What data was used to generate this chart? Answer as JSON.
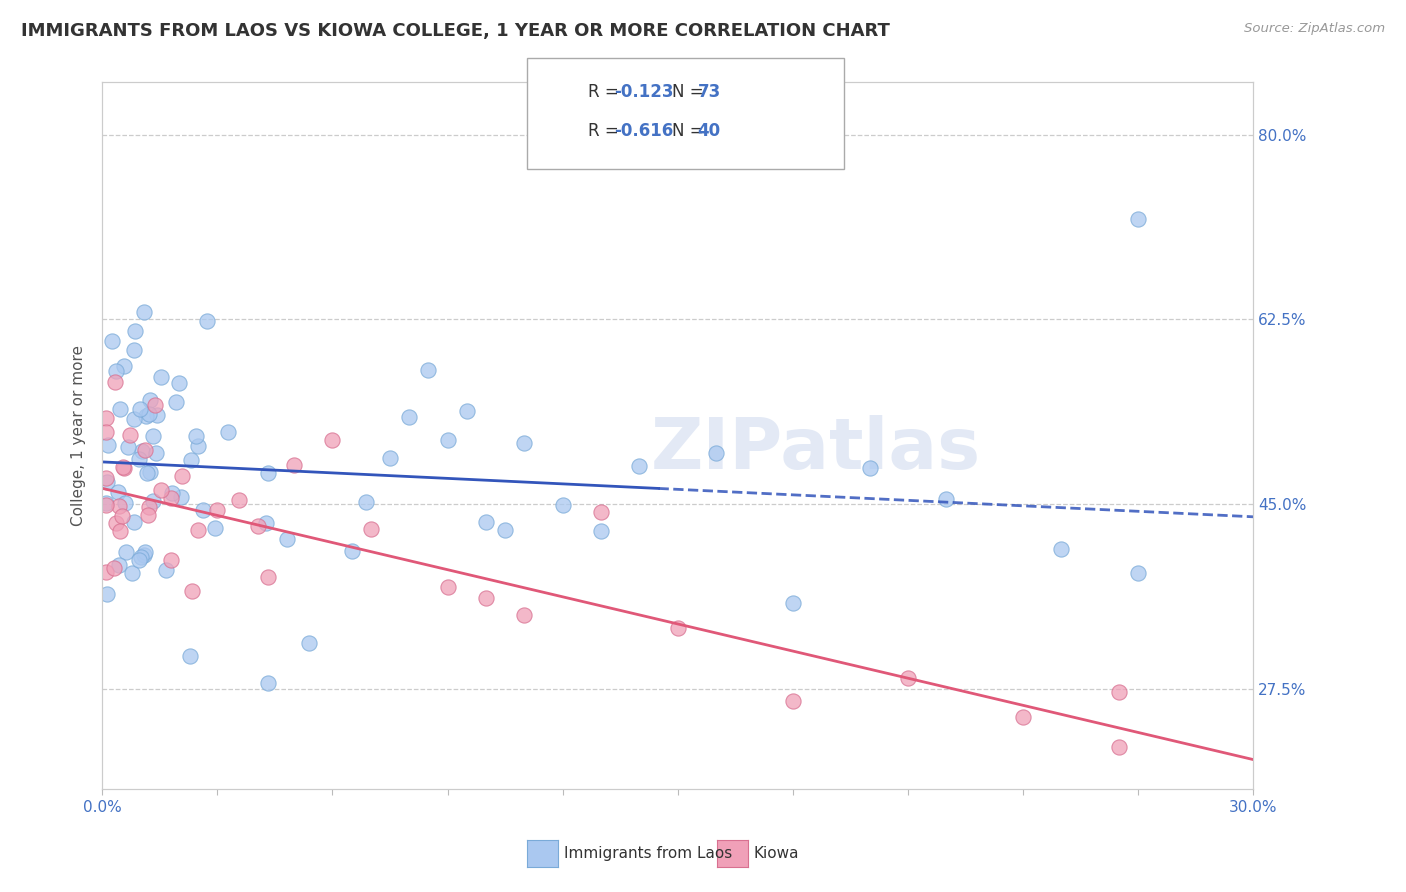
{
  "title": "IMMIGRANTS FROM LAOS VS KIOWA COLLEGE, 1 YEAR OR MORE CORRELATION CHART",
  "source_text": "Source: ZipAtlas.com",
  "ylabel": "College, 1 year or more",
  "xlim": [
    0.0,
    0.3
  ],
  "ylim": [
    0.18,
    0.85
  ],
  "yticks": [
    0.275,
    0.45,
    0.625,
    0.8
  ],
  "ytick_labels": [
    "27.5%",
    "45.0%",
    "62.5%",
    "80.0%"
  ],
  "xticks": [
    0.0,
    0.03,
    0.06,
    0.09,
    0.12,
    0.15,
    0.18,
    0.21,
    0.24,
    0.27,
    0.3
  ],
  "xtick_labels": [
    "0.0%",
    "",
    "",
    "",
    "",
    "",
    "",
    "",
    "",
    "",
    "30.0%"
  ],
  "series1_color": "#aac8f0",
  "series1_edge": "#7aaad8",
  "series2_color": "#f0a0b8",
  "series2_edge": "#d87090",
  "line1_color": "#3355bb",
  "line2_color": "#e05878",
  "legend_text1": "R = -0.123   N = 73",
  "legend_text2": "R = -0.616   N = 40",
  "watermark": "ZIPatlas",
  "series1_label": "Immigrants from Laos",
  "series2_label": "Kiowa",
  "trend1_x0": 0.0,
  "trend1_y0": 0.49,
  "trend1_x1": 0.3,
  "trend1_y1": 0.438,
  "trend1_solid_end": 0.145,
  "trend2_x0": 0.0,
  "trend2_y0": 0.465,
  "trend2_x1": 0.3,
  "trend2_y1": 0.208,
  "background_color": "#ffffff",
  "grid_color": "#cccccc",
  "title_fontsize": 13,
  "label_color": "#4472c4",
  "text_color": "#222222"
}
